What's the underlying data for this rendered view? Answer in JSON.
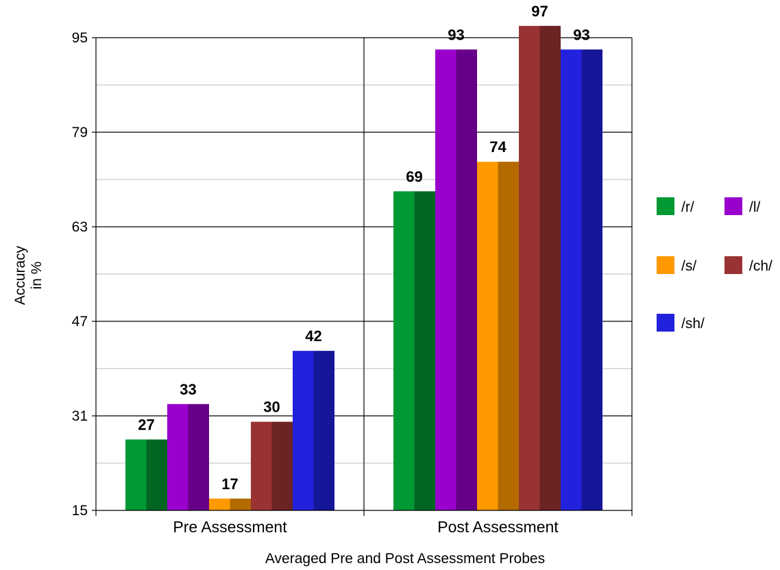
{
  "chart_data": {
    "type": "bar",
    "categories": [
      "Pre Assessment",
      "Post Assessment"
    ],
    "series": [
      {
        "name": "/r/",
        "values": [
          27,
          69
        ],
        "color": "#009933",
        "shade": "#006622"
      },
      {
        "name": "/l/",
        "values": [
          33,
          93
        ],
        "color": "#9900cc",
        "shade": "#660088"
      },
      {
        "name": "/s/",
        "values": [
          17,
          74
        ],
        "color": "#ff9900",
        "shade": "#b36b00"
      },
      {
        "name": "/ch/",
        "values": [
          30,
          97
        ],
        "color": "#993333",
        "shade": "#6b2323"
      },
      {
        "name": "/sh/",
        "values": [
          42,
          93
        ],
        "color": "#2222dd",
        "shade": "#161699"
      }
    ],
    "xlabel": "Averaged Pre and Post Assessment Probes",
    "ylabel_lines": [
      "Accuracy",
      "in %"
    ],
    "ylim": [
      15,
      95
    ],
    "yticks": [
      15,
      31,
      47,
      63,
      79,
      95
    ],
    "minor_gridlines": true,
    "legend_position": "right"
  }
}
